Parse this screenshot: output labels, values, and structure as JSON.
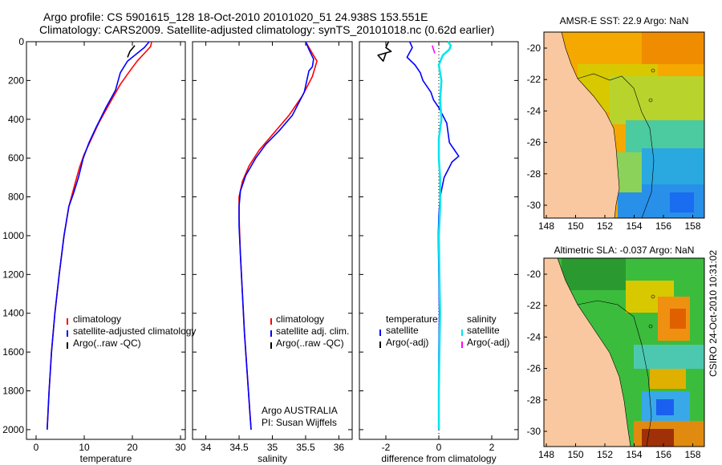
{
  "header": {
    "line1": "Argo profile: CS 5901615_128 18-Oct-2010 20101020_51 24.938S 153.551E",
    "line2": "Climatology: CARS2009. Satellite-adjusted climatology: synTS_20101018.nc (0.62d earlier)"
  },
  "side_stamp": "CSIRO 24-Oct-2010 10:31:02",
  "colors": {
    "climatology": "#ff0000",
    "satellite": "#0000ff",
    "argo": "#000000",
    "sal_satellite": "#00e5ee",
    "sal_argo": "#ff00ff",
    "land": "#f9c8a0"
  },
  "chart_data": [
    {
      "type": "line",
      "title": "",
      "xlabel": "temperature",
      "ylabel": "",
      "xlim": [
        -2,
        31
      ],
      "ylim": [
        2050,
        0
      ],
      "xticks": [
        "0",
        "10",
        "20",
        "30"
      ],
      "yticks": [
        "0",
        "200",
        "400",
        "600",
        "800",
        "1000",
        "1200",
        "1400",
        "1600",
        "1800",
        "2000"
      ],
      "legend": [
        "climatology",
        "satellite-adjusted climatology",
        "Argo(..raw -QC)"
      ],
      "series": [
        {
          "name": "climatology",
          "color": "red",
          "points": [
            [
              24,
              0
            ],
            [
              23.8,
              25
            ],
            [
              22.5,
              60
            ],
            [
              21,
              100
            ],
            [
              19.5,
              150
            ],
            [
              17.5,
              220
            ],
            [
              15,
              330
            ],
            [
              13,
              420
            ],
            [
              11.5,
              500
            ],
            [
              10,
              580
            ],
            [
              9,
              650
            ],
            [
              8,
              740
            ],
            [
              6.8,
              850
            ],
            [
              5.8,
              1000
            ],
            [
              4.8,
              1200
            ],
            [
              3.9,
              1400
            ],
            [
              3.2,
              1600
            ],
            [
              2.7,
              1800
            ],
            [
              2.4,
              1950
            ],
            [
              2.3,
              2000
            ]
          ]
        },
        {
          "name": "satellite-adjusted climatology",
          "color": "blue",
          "points": [
            [
              23.5,
              0
            ],
            [
              22.5,
              30
            ],
            [
              21,
              60
            ],
            [
              19,
              100
            ],
            [
              17.5,
              160
            ],
            [
              16.5,
              250
            ],
            [
              14.5,
              340
            ],
            [
              12.5,
              440
            ],
            [
              11,
              520
            ],
            [
              9.8,
              600
            ],
            [
              8.8,
              700
            ],
            [
              7.8,
              780
            ],
            [
              6.8,
              850
            ],
            [
              5.8,
              1000
            ],
            [
              4.8,
              1200
            ],
            [
              3.9,
              1400
            ],
            [
              3.2,
              1600
            ],
            [
              2.7,
              1800
            ],
            [
              2.4,
              1950
            ],
            [
              2.3,
              2000
            ]
          ]
        },
        {
          "name": "Argo(..raw -QC)",
          "color": "black",
          "points": [
            [
              20.5,
              20
            ],
            [
              19.5,
              50
            ],
            [
              19,
              80
            ]
          ]
        }
      ]
    },
    {
      "type": "line",
      "xlabel": "salinity",
      "xlim": [
        33.8,
        36.2
      ],
      "ylim": [
        2050,
        0
      ],
      "xticks": [
        "34",
        "34.5",
        "35",
        "35.5",
        "36"
      ],
      "legend": [
        "climatology",
        "satellite adj. clim.",
        "Argo(..raw -QC)"
      ],
      "annotation": [
        "Argo AUSTRALIA",
        "PI: Susan Wijffels"
      ],
      "series": [
        {
          "name": "climatology",
          "color": "red",
          "points": [
            [
              35.5,
              0
            ],
            [
              35.6,
              60
            ],
            [
              35.67,
              100
            ],
            [
              35.6,
              180
            ],
            [
              35.45,
              280
            ],
            [
              35.25,
              380
            ],
            [
              35.0,
              480
            ],
            [
              34.8,
              560
            ],
            [
              34.65,
              640
            ],
            [
              34.55,
              720
            ],
            [
              34.5,
              800
            ],
            [
              34.5,
              900
            ],
            [
              34.52,
              1100
            ],
            [
              34.55,
              1300
            ],
            [
              34.58,
              1500
            ],
            [
              34.62,
              1700
            ],
            [
              34.66,
              1900
            ],
            [
              34.68,
              2000
            ]
          ]
        },
        {
          "name": "satellite adj. clim.",
          "color": "blue",
          "points": [
            [
              35.5,
              0
            ],
            [
              35.55,
              40
            ],
            [
              35.62,
              90
            ],
            [
              35.6,
              130
            ],
            [
              35.55,
              150
            ],
            [
              35.48,
              260
            ],
            [
              35.3,
              380
            ],
            [
              35.1,
              460
            ],
            [
              34.9,
              530
            ],
            [
              34.75,
              600
            ],
            [
              34.6,
              690
            ],
            [
              34.52,
              770
            ],
            [
              34.5,
              850
            ],
            [
              34.5,
              950
            ],
            [
              34.52,
              1100
            ],
            [
              34.55,
              1300
            ],
            [
              34.58,
              1500
            ],
            [
              34.62,
              1700
            ],
            [
              34.66,
              1900
            ],
            [
              34.68,
              2000
            ]
          ]
        }
      ]
    },
    {
      "type": "line",
      "xlabel": "difference from climatology",
      "xlim": [
        -3,
        3
      ],
      "ylim": [
        2050,
        0
      ],
      "xticks": [
        "-2",
        "0",
        "2"
      ],
      "legend_temperature": {
        "header": "temperature",
        "items": [
          "satellite",
          "Argo(-adj)"
        ]
      },
      "legend_salinity": {
        "header": "salinity",
        "items": [
          "satellite",
          "Argo(-adj)"
        ]
      },
      "series": [
        {
          "name": "temperature satellite",
          "color": "blue",
          "points": [
            [
              -1.1,
              0
            ],
            [
              -1.0,
              30
            ],
            [
              -1.2,
              80
            ],
            [
              -0.9,
              120
            ],
            [
              -0.7,
              160
            ],
            [
              -0.6,
              200
            ],
            [
              -0.3,
              260
            ],
            [
              -0.2,
              300
            ],
            [
              0.0,
              340
            ],
            [
              0.3,
              420
            ],
            [
              0.4,
              520
            ],
            [
              0.6,
              560
            ],
            [
              0.75,
              590
            ],
            [
              0.5,
              620
            ],
            [
              0.2,
              700
            ],
            [
              0.05,
              800
            ],
            [
              0.0,
              900
            ],
            [
              -0.02,
              1000
            ],
            [
              0.0,
              1200
            ],
            [
              0.02,
              1400
            ],
            [
              0.0,
              1600
            ],
            [
              0.0,
              2000
            ]
          ]
        },
        {
          "name": "temperature Argo(-adj)",
          "color": "black",
          "points": [
            [
              -1.9,
              0
            ],
            [
              -2.0,
              30
            ],
            [
              -1.8,
              50
            ],
            [
              -2.3,
              70
            ],
            [
              -2.1,
              100
            ],
            [
              -2.0,
              60
            ]
          ]
        },
        {
          "name": "salinity satellite",
          "color": "cyan",
          "points": [
            [
              0.35,
              0
            ],
            [
              0.45,
              20
            ],
            [
              0.4,
              40
            ],
            [
              0.15,
              70
            ],
            [
              0.0,
              120
            ],
            [
              0.1,
              200
            ],
            [
              0.05,
              300
            ],
            [
              0.1,
              400
            ],
            [
              0.0,
              500
            ],
            [
              0.0,
              600
            ],
            [
              0.05,
              700
            ],
            [
              0.05,
              850
            ],
            [
              0.0,
              1000
            ],
            [
              0.02,
              1200
            ],
            [
              0.05,
              1400
            ],
            [
              0.02,
              1600
            ],
            [
              0.0,
              1800
            ],
            [
              0.0,
              2000
            ]
          ]
        },
        {
          "name": "salinity Argo(-adj)",
          "color": "magenta",
          "points": [
            [
              -0.25,
              20
            ],
            [
              -0.2,
              40
            ],
            [
              -0.15,
              60
            ]
          ]
        }
      ]
    }
  ],
  "maps": [
    {
      "title": "AMSR-E SST: 22.9 Argo: NaN",
      "xticks": [
        "148",
        "150",
        "152",
        "154",
        "156",
        "158"
      ],
      "yticks": [
        "-20",
        "-22",
        "-24",
        "-26",
        "-28",
        "-30"
      ]
    },
    {
      "title": "Altimetric SLA: -0.037 Argo: NaN",
      "xticks": [
        "148",
        "150",
        "152",
        "154",
        "156",
        "158"
      ],
      "yticks": [
        "-20",
        "-22",
        "-24",
        "-26",
        "-28",
        "-30"
      ]
    }
  ]
}
